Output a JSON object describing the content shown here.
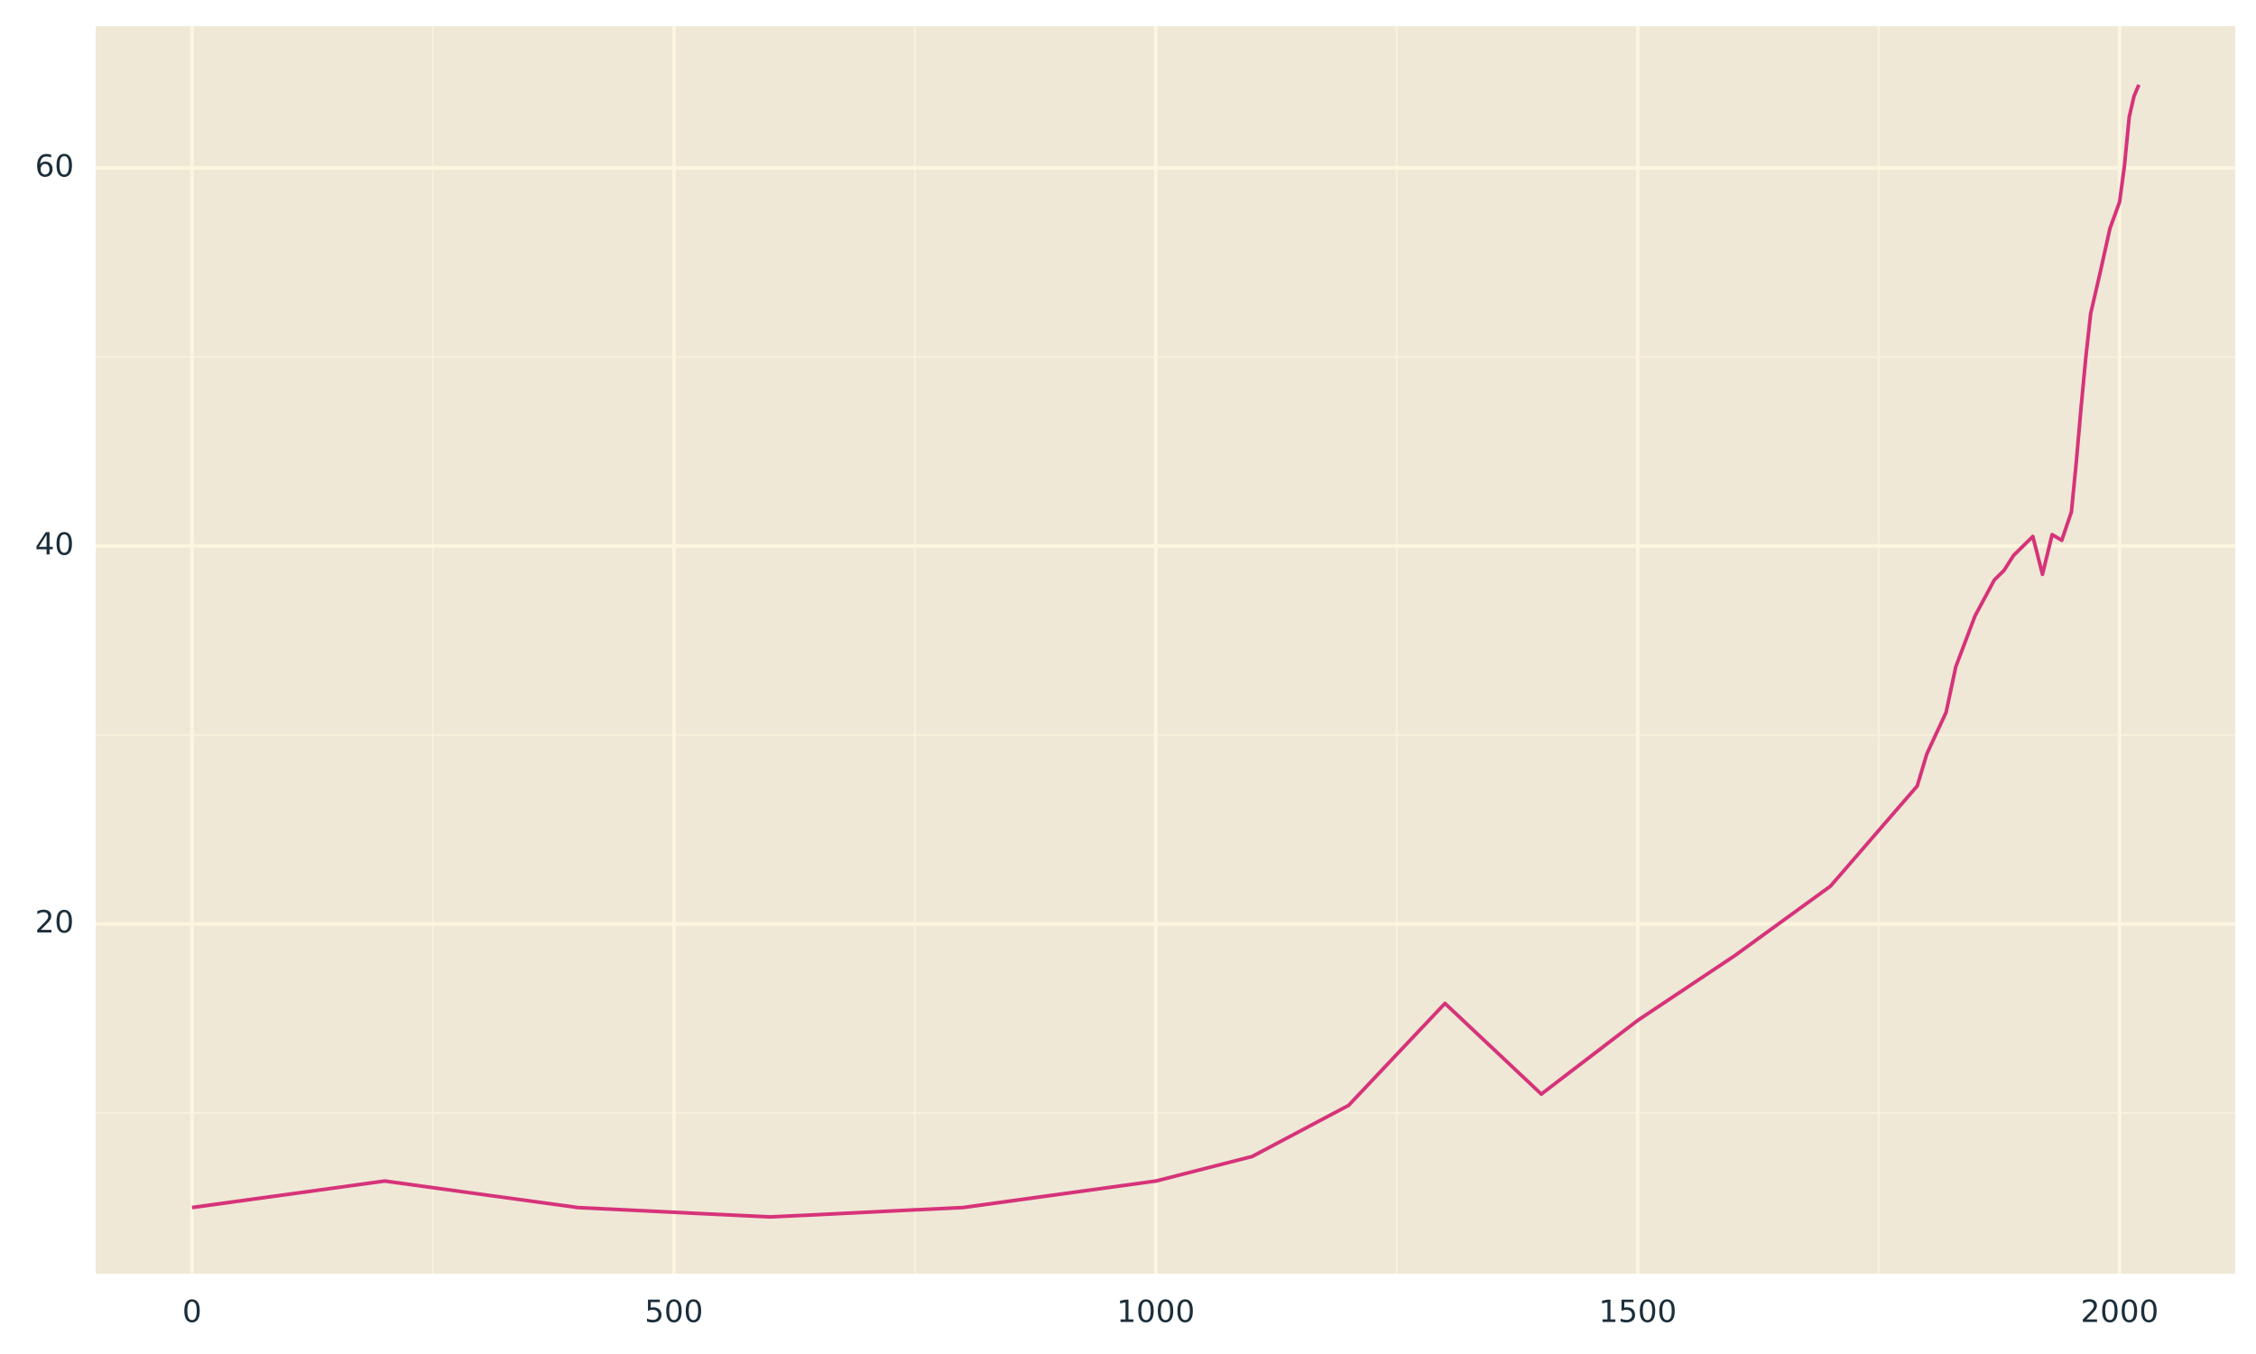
{
  "chart_data": {
    "type": "line",
    "x": [
      0,
      200,
      400,
      600,
      800,
      1000,
      1100,
      1200,
      1300,
      1400,
      1500,
      1600,
      1700,
      1790,
      1800,
      1820,
      1830,
      1850,
      1870,
      1880,
      1890,
      1910,
      1920,
      1930,
      1940,
      1950,
      1955,
      1960,
      1965,
      1970,
      1980,
      1990,
      2000,
      2005,
      2010,
      2015,
      2020
    ],
    "series": [
      {
        "color": "#d6337a",
        "values": [
          5.0,
          6.4,
          5.0,
          4.5,
          5.0,
          6.4,
          7.7,
          10.4,
          15.8,
          11.0,
          14.9,
          18.3,
          22.0,
          27.3,
          29.0,
          31.2,
          33.6,
          36.3,
          38.2,
          38.7,
          39.5,
          40.5,
          38.5,
          40.6,
          40.3,
          41.8,
          44.4,
          47.3,
          50.0,
          52.3,
          54.5,
          56.8,
          58.2,
          60.1,
          62.7,
          63.8,
          64.4
        ]
      }
    ],
    "xlim": [
      -100,
      2120
    ],
    "xticks": [
      0,
      500,
      1000,
      1500,
      2000
    ],
    "xminor": [
      250,
      750,
      1250,
      1750
    ],
    "ylim": [
      1.5,
      67.5
    ],
    "yticks": [
      20,
      40,
      60
    ],
    "yminor": [
      10,
      30,
      50
    ],
    "grid": true
  }
}
